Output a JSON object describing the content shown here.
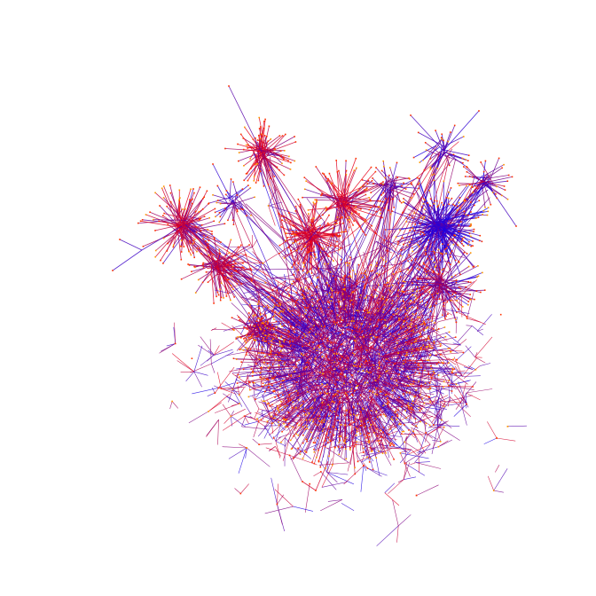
{
  "graph": {
    "type": "network-diagram",
    "labels": [],
    "colors": {
      "background": "#ffffff",
      "edge_a": "#1a00e6",
      "edge_b": "#e6001a",
      "node": "#ff3300",
      "node_alt": "#ff9900"
    },
    "edge_count_estimate": 5000
  }
}
